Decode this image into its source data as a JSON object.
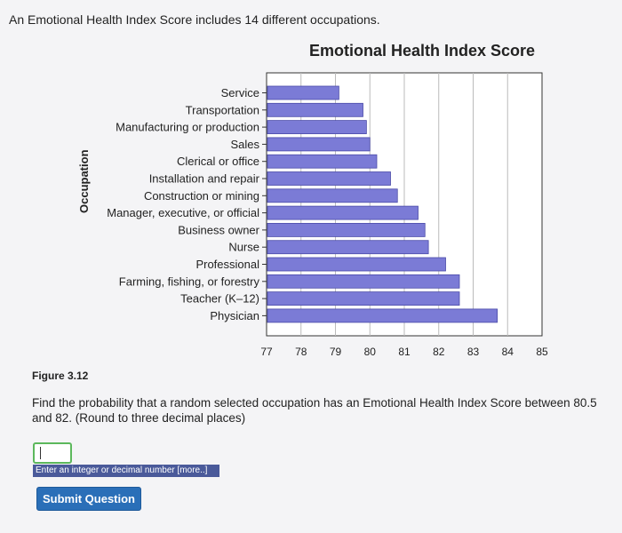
{
  "intro_text": "An Emotional Health Index Score includes 14 different occupations.",
  "figure_label": "Figure 3.12",
  "question": "Find the probability that a random selected occupation has an Emotional Health Index Score between 80.5 and 82. (Round to three decimal places)",
  "answer": {
    "value": "",
    "hint": "Enter an integer or decimal number [more..]"
  },
  "submit_label": "Submit Question",
  "colors": {
    "bar": "#7b7bd6",
    "bar_stroke": "#4a4aa8",
    "submit": "#2a6fb8",
    "input_border": "#5cb85c"
  },
  "chart_data": {
    "type": "bar",
    "orientation": "horizontal",
    "title": "Emotional Health Index Score",
    "ylabel": "Occupation",
    "xlabel": "",
    "categories": [
      "Service",
      "Transportation",
      "Manufacturing or production",
      "Sales",
      "Clerical or office",
      "Installation and repair",
      "Construction or mining",
      "Manager, executive, or official",
      "Business owner",
      "Nurse",
      "Professional",
      "Farming, fishing, or forestry",
      "Teacher (K–12)",
      "Physician"
    ],
    "values": [
      79.1,
      79.8,
      79.9,
      80.0,
      80.2,
      80.6,
      80.8,
      81.4,
      81.6,
      81.7,
      82.2,
      82.6,
      82.6,
      83.7
    ],
    "xlim": [
      77,
      85
    ],
    "xticks": [
      "77",
      "78",
      "79",
      "80",
      "81",
      "82",
      "83",
      "84",
      "85"
    ],
    "grid": true
  }
}
